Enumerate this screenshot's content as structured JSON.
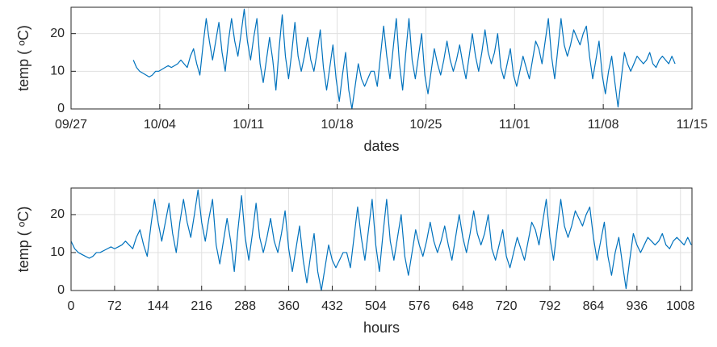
{
  "chart_data": [
    {
      "type": "line",
      "xlabel": "dates",
      "ylabel": "temp (  ᵒC)",
      "xlim": [
        -118,
        1058
      ],
      "xticks": [
        {
          "value": -118,
          "label": "09/27"
        },
        {
          "value": 50,
          "label": "10/04"
        },
        {
          "value": 218,
          "label": "10/11"
        },
        {
          "value": 386,
          "label": "10/18"
        },
        {
          "value": 554,
          "label": "10/25"
        },
        {
          "value": 722,
          "label": "11/01"
        },
        {
          "value": 890,
          "label": "11/08"
        },
        {
          "value": 1058,
          "label": "11/15"
        }
      ],
      "ylim": [
        0,
        27
      ],
      "yticks": [
        0,
        10,
        20
      ],
      "grid": true,
      "x": [
        0,
        6,
        12,
        18,
        24,
        30,
        36,
        42,
        48,
        54,
        60,
        66,
        72,
        78,
        84,
        90,
        96,
        102,
        108,
        114,
        120,
        126,
        132,
        138,
        144,
        150,
        156,
        162,
        168,
        174,
        180,
        186,
        192,
        198,
        204,
        210,
        216,
        222,
        228,
        234,
        240,
        246,
        252,
        258,
        264,
        270,
        276,
        282,
        288,
        294,
        300,
        306,
        312,
        318,
        324,
        330,
        336,
        342,
        348,
        354,
        360,
        366,
        372,
        378,
        384,
        390,
        396,
        402,
        408,
        414,
        420,
        426,
        432,
        438,
        444,
        450,
        456,
        462,
        468,
        474,
        480,
        486,
        492,
        498,
        504,
        510,
        516,
        522,
        528,
        534,
        540,
        546,
        552,
        558,
        564,
        570,
        576,
        582,
        588,
        594,
        600,
        606,
        612,
        618,
        624,
        630,
        636,
        642,
        648,
        654,
        660,
        666,
        672,
        678,
        684,
        690,
        696,
        702,
        708,
        714,
        720,
        726,
        732,
        738,
        744,
        750,
        756,
        762,
        768,
        774,
        780,
        786,
        792,
        798,
        804,
        810,
        816,
        822,
        828,
        834,
        840,
        846,
        852,
        858,
        864,
        870,
        876,
        882,
        888,
        894,
        900,
        906,
        912,
        918,
        924,
        930,
        936,
        942,
        948,
        954,
        960,
        966,
        972,
        978,
        984,
        990,
        996,
        1002,
        1008,
        1014,
        1020,
        1026
      ],
      "series": [
        {
          "color": "#0072bd",
          "values": [
            13,
            11,
            10,
            9.5,
            9,
            8.5,
            9,
            10,
            10,
            10.5,
            11,
            11.5,
            11,
            11.5,
            12,
            13,
            12,
            11,
            14,
            16,
            12,
            9,
            17,
            24,
            18,
            13,
            18,
            23,
            15,
            10,
            18,
            24,
            18,
            14,
            20,
            26.5,
            18,
            13,
            19,
            24,
            12,
            7,
            13,
            19,
            13,
            5,
            16,
            25,
            14,
            8,
            15,
            23,
            14,
            10,
            14,
            19,
            13,
            10,
            15,
            21,
            11,
            5,
            11,
            17,
            8,
            2,
            9,
            15,
            5,
            0,
            6,
            12,
            8,
            6,
            8,
            10,
            10,
            6,
            14,
            22,
            14,
            8,
            16,
            24,
            12,
            5,
            15,
            24,
            13,
            8,
            14,
            20,
            9,
            4,
            10,
            16,
            12,
            9,
            13,
            18,
            13,
            10,
            13,
            17,
            12,
            8,
            14,
            20,
            14,
            10,
            15,
            21,
            15,
            12,
            15,
            20,
            11,
            8,
            12,
            16,
            9,
            6,
            10,
            14,
            11,
            8,
            13,
            18,
            16,
            12,
            18,
            24,
            14,
            8,
            16,
            24,
            17,
            14,
            17,
            21,
            19,
            17,
            20,
            22,
            14,
            8,
            13,
            18,
            9,
            4,
            10,
            14,
            7,
            0.5,
            8,
            15,
            12,
            10,
            12,
            14,
            13,
            12,
            13,
            15,
            12,
            11,
            13,
            14,
            13,
            12,
            14,
            12
          ]
        }
      ]
    },
    {
      "type": "line",
      "xlabel": "hours",
      "ylabel": "temp (  ᵒC)",
      "xlim": [
        0,
        1027
      ],
      "xticks": [
        0,
        72,
        144,
        216,
        288,
        360,
        432,
        504,
        576,
        648,
        720,
        792,
        864,
        936,
        1008
      ],
      "ylim": [
        0,
        27
      ],
      "yticks": [
        0,
        10,
        20
      ],
      "grid": true,
      "x": [
        0,
        6,
        12,
        18,
        24,
        30,
        36,
        42,
        48,
        54,
        60,
        66,
        72,
        78,
        84,
        90,
        96,
        102,
        108,
        114,
        120,
        126,
        132,
        138,
        144,
        150,
        156,
        162,
        168,
        174,
        180,
        186,
        192,
        198,
        204,
        210,
        216,
        222,
        228,
        234,
        240,
        246,
        252,
        258,
        264,
        270,
        276,
        282,
        288,
        294,
        300,
        306,
        312,
        318,
        324,
        330,
        336,
        342,
        348,
        354,
        360,
        366,
        372,
        378,
        384,
        390,
        396,
        402,
        408,
        414,
        420,
        426,
        432,
        438,
        444,
        450,
        456,
        462,
        468,
        474,
        480,
        486,
        492,
        498,
        504,
        510,
        516,
        522,
        528,
        534,
        540,
        546,
        552,
        558,
        564,
        570,
        576,
        582,
        588,
        594,
        600,
        606,
        612,
        618,
        624,
        630,
        636,
        642,
        648,
        654,
        660,
        666,
        672,
        678,
        684,
        690,
        696,
        702,
        708,
        714,
        720,
        726,
        732,
        738,
        744,
        750,
        756,
        762,
        768,
        774,
        780,
        786,
        792,
        798,
        804,
        810,
        816,
        822,
        828,
        834,
        840,
        846,
        852,
        858,
        864,
        870,
        876,
        882,
        888,
        894,
        900,
        906,
        912,
        918,
        924,
        930,
        936,
        942,
        948,
        954,
        960,
        966,
        972,
        978,
        984,
        990,
        996,
        1002,
        1008,
        1014,
        1020,
        1026
      ],
      "series": [
        {
          "color": "#0072bd",
          "values": [
            13,
            11,
            10,
            9.5,
            9,
            8.5,
            9,
            10,
            10,
            10.5,
            11,
            11.5,
            11,
            11.5,
            12,
            13,
            12,
            11,
            14,
            16,
            12,
            9,
            17,
            24,
            18,
            13,
            18,
            23,
            15,
            10,
            18,
            24,
            18,
            14,
            20,
            26.5,
            18,
            13,
            19,
            24,
            12,
            7,
            13,
            19,
            13,
            5,
            16,
            25,
            14,
            8,
            15,
            23,
            14,
            10,
            14,
            19,
            13,
            10,
            15,
            21,
            11,
            5,
            11,
            17,
            8,
            2,
            9,
            15,
            5,
            0,
            6,
            12,
            8,
            6,
            8,
            10,
            10,
            6,
            14,
            22,
            14,
            8,
            16,
            24,
            12,
            5,
            15,
            24,
            13,
            8,
            14,
            20,
            9,
            4,
            10,
            16,
            12,
            9,
            13,
            18,
            13,
            10,
            13,
            17,
            12,
            8,
            14,
            20,
            14,
            10,
            15,
            21,
            15,
            12,
            15,
            20,
            11,
            8,
            12,
            16,
            9,
            6,
            10,
            14,
            11,
            8,
            13,
            18,
            16,
            12,
            18,
            24,
            14,
            8,
            16,
            24,
            17,
            14,
            17,
            21,
            19,
            17,
            20,
            22,
            14,
            8,
            13,
            18,
            9,
            4,
            10,
            14,
            7,
            0.5,
            8,
            15,
            12,
            10,
            12,
            14,
            13,
            12,
            13,
            15,
            12,
            11,
            13,
            14,
            13,
            12,
            14,
            12
          ]
        }
      ]
    }
  ]
}
